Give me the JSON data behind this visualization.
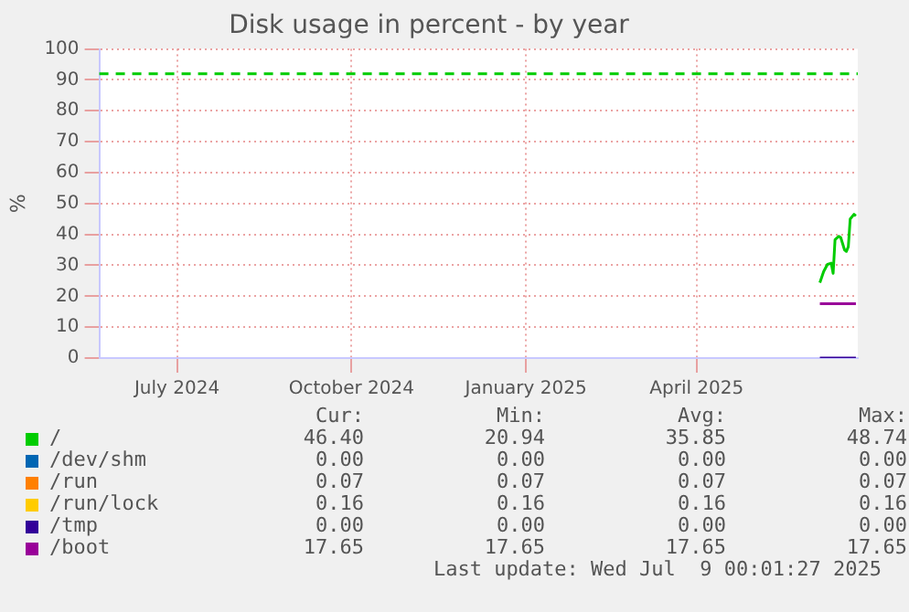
{
  "chart_data": {
    "type": "line",
    "title": "Disk usage in percent - by year",
    "ylabel": "%",
    "xlim": [
      "2024-06-05",
      "2025-07-10"
    ],
    "xticks": [
      {
        "value": "2024-07-16",
        "label": "July 2024"
      },
      {
        "value": "2024-10-16",
        "label": "October 2024"
      },
      {
        "value": "2025-01-16",
        "label": "January 2025"
      },
      {
        "value": "2025-04-16",
        "label": "April 2025"
      }
    ],
    "ylim": [
      0,
      100
    ],
    "yticks": [
      0,
      10,
      20,
      30,
      40,
      50,
      60,
      70,
      80,
      90,
      100
    ],
    "grid": true,
    "legend": "bottom",
    "series": [
      {
        "name": "/",
        "color": "#00cc00",
        "x": [
          "2025-06-20",
          "2025-06-22",
          "2025-06-24",
          "2025-06-26",
          "2025-06-27",
          "2025-06-28",
          "2025-06-30",
          "2025-07-01",
          "2025-07-03",
          "2025-07-04",
          "2025-07-05",
          "2025-07-06",
          "2025-07-08",
          "2025-07-09"
        ],
        "values": [
          24.4,
          28,
          30.3,
          30.7,
          27.4,
          38.3,
          39.4,
          39,
          35,
          34.5,
          36,
          45,
          46.5,
          46
        ]
      },
      {
        "name": "/dev/shm",
        "color": "#0066b3"
      },
      {
        "name": "/run",
        "color": "#ff8000"
      },
      {
        "name": "/run/lock",
        "color": "#ffcc00"
      },
      {
        "name": "/tmp",
        "color": "#330099",
        "x": [
          "2025-06-20",
          "2025-07-09"
        ],
        "values": [
          0,
          0
        ]
      },
      {
        "name": "/boot",
        "color": "#990099",
        "x": [
          "2025-06-20",
          "2025-07-09"
        ],
        "values": [
          17.6,
          17.6
        ]
      }
    ],
    "ref_lines": [
      {
        "axis": "y",
        "value": 92,
        "color": "#00cc00",
        "line_style": "dashed"
      }
    ],
    "annotations": [
      "Cur:",
      "Min:",
      "Avg:",
      "Max:",
      "46.40",
      "20.94",
      "35.85",
      "48.74",
      "0.00",
      "0.00",
      "0.00",
      "0.00",
      "0.07",
      "0.07",
      "0.07",
      "0.07",
      "0.16",
      "0.16",
      "0.16",
      "0.16",
      "0.00",
      "0.00",
      "0.00",
      "0.00",
      "17.65",
      "17.65",
      "17.65",
      "17.65",
      "Last update: Wed Jul  9 00:01:27 2025"
    ]
  }
}
